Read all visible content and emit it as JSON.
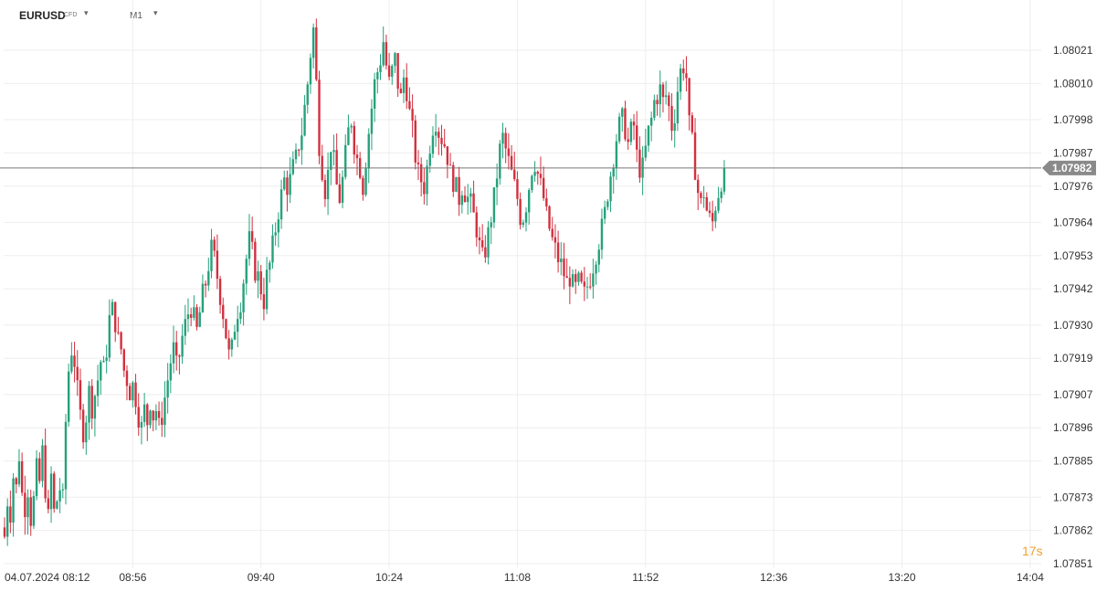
{
  "header": {
    "symbol": "EURUSD",
    "instrument_type": "CFD",
    "timeframe": "M1"
  },
  "colors": {
    "bull": "#26a17b",
    "bear": "#d2303f",
    "grid": "#eeeeee",
    "price_line": "#777777",
    "badge_bg": "#8a8a8a",
    "countdown": "#f0a030"
  },
  "chart_data": {
    "type": "candlestick",
    "symbol": "EURUSD",
    "timeframe": "M1",
    "ylim": [
      1.07846,
      1.08037
    ],
    "y_ticks": [
      "1.08021",
      "1.08010",
      "1.07998",
      "1.07987",
      "1.07976",
      "1.07964",
      "1.07953",
      "1.07942",
      "1.07930",
      "1.07919",
      "1.07907",
      "1.07896",
      "1.07885",
      "1.07873",
      "1.07862",
      "1.07851"
    ],
    "x_ticks": [
      {
        "label": "04.07.2024  08:12",
        "minute": 0
      },
      {
        "label": "08:56",
        "minute": 44
      },
      {
        "label": "09:40",
        "minute": 88
      },
      {
        "label": "10:24",
        "minute": 132
      },
      {
        "label": "11:08",
        "minute": 176
      },
      {
        "label": "11:52",
        "minute": 220
      },
      {
        "label": "12:36",
        "minute": 264
      },
      {
        "label": "13:20",
        "minute": 308
      },
      {
        "label": "14:04",
        "minute": 352
      }
    ],
    "last_price": "1.07982",
    "countdown": "17s",
    "close_path": [
      [
        0,
        1.0786
      ],
      [
        1,
        1.07872
      ],
      [
        2,
        1.07868
      ],
      [
        3,
        1.0788
      ],
      [
        4,
        1.07876
      ],
      [
        5,
        1.07887
      ],
      [
        6,
        1.07874
      ],
      [
        7,
        1.0787
      ],
      [
        8,
        1.07876
      ],
      [
        9,
        1.07866
      ],
      [
        10,
        1.07872
      ],
      [
        11,
        1.07882
      ],
      [
        12,
        1.07878
      ],
      [
        13,
        1.07888
      ],
      [
        14,
        1.07876
      ],
      [
        15,
        1.07866
      ],
      [
        16,
        1.0788
      ],
      [
        17,
        1.07868
      ],
      [
        18,
        1.07872
      ],
      [
        19,
        1.07876
      ],
      [
        20,
        1.07872
      ],
      [
        21,
        1.07898
      ],
      [
        22,
        1.07915
      ],
      [
        23,
        1.07922
      ],
      [
        24,
        1.07918
      ],
      [
        25,
        1.07908
      ],
      [
        26,
        1.079
      ],
      [
        27,
        1.07895
      ],
      [
        28,
        1.079
      ],
      [
        29,
        1.07908
      ],
      [
        30,
        1.07903
      ],
      [
        31,
        1.07907
      ],
      [
        32,
        1.07912
      ],
      [
        33,
        1.07918
      ],
      [
        34,
        1.07915
      ],
      [
        35,
        1.07922
      ],
      [
        36,
        1.07932
      ],
      [
        37,
        1.07935
      ],
      [
        38,
        1.07931
      ],
      [
        39,
        1.07925
      ],
      [
        40,
        1.07922
      ],
      [
        41,
        1.07915
      ],
      [
        42,
        1.07912
      ],
      [
        43,
        1.07908
      ],
      [
        44,
        1.0791
      ],
      [
        45,
        1.07906
      ],
      [
        46,
        1.079
      ],
      [
        47,
        1.07896
      ],
      [
        48,
        1.07902
      ],
      [
        49,
        1.07898
      ],
      [
        50,
        1.07905
      ],
      [
        51,
        1.079
      ],
      [
        52,
        1.07902
      ],
      [
        53,
        1.07896
      ],
      [
        54,
        1.079
      ],
      [
        55,
        1.07906
      ],
      [
        56,
        1.07912
      ],
      [
        57,
        1.07918
      ],
      [
        58,
        1.07922
      ],
      [
        59,
        1.07916
      ],
      [
        60,
        1.0792
      ],
      [
        61,
        1.07926
      ],
      [
        62,
        1.0793
      ],
      [
        63,
        1.07934
      ],
      [
        64,
        1.07936
      ],
      [
        65,
        1.07932
      ],
      [
        66,
        1.07928
      ],
      [
        67,
        1.07934
      ],
      [
        68,
        1.0794
      ],
      [
        69,
        1.07944
      ],
      [
        70,
        1.0795
      ],
      [
        71,
        1.07955
      ],
      [
        72,
        1.07952
      ],
      [
        73,
        1.07946
      ],
      [
        74,
        1.0794
      ],
      [
        75,
        1.07934
      ],
      [
        76,
        1.07927
      ],
      [
        77,
        1.0792
      ],
      [
        78,
        1.07922
      ],
      [
        79,
        1.0793
      ],
      [
        80,
        1.07935
      ],
      [
        81,
        1.07938
      ],
      [
        82,
        1.07945
      ],
      [
        83,
        1.07952
      ],
      [
        84,
        1.07958
      ],
      [
        85,
        1.07954
      ],
      [
        86,
        1.07948
      ],
      [
        87,
        1.07946
      ],
      [
        88,
        1.07942
      ],
      [
        89,
        1.07938
      ],
      [
        90,
        1.07946
      ],
      [
        91,
        1.0795
      ],
      [
        92,
        1.07956
      ],
      [
        93,
        1.07962
      ],
      [
        94,
        1.07968
      ],
      [
        95,
        1.07973
      ],
      [
        96,
        1.07978
      ],
      [
        97,
        1.07976
      ],
      [
        98,
        1.07978
      ],
      [
        99,
        1.07982
      ],
      [
        100,
        1.07985
      ],
      [
        101,
        1.0799
      ],
      [
        102,
        1.07994
      ],
      [
        103,
        1.08002
      ],
      [
        104,
        1.0801
      ],
      [
        105,
        1.0802
      ],
      [
        106,
        1.08028
      ],
      [
        107,
        1.0801
      ],
      [
        108,
        1.0799
      ],
      [
        109,
        1.07982
      ],
      [
        110,
        1.07975
      ],
      [
        111,
        1.0798
      ],
      [
        112,
        1.0799
      ],
      [
        113,
        1.07984
      ],
      [
        114,
        1.07976
      ],
      [
        115,
        1.07972
      ],
      [
        116,
        1.07978
      ],
      [
        117,
        1.07986
      ],
      [
        118,
        1.07994
      ],
      [
        119,
        1.07998
      ],
      [
        120,
        1.0799
      ],
      [
        121,
        1.07985
      ],
      [
        122,
        1.07982
      ],
      [
        123,
        1.07976
      ],
      [
        124,
        1.07985
      ],
      [
        125,
        1.07994
      ],
      [
        126,
        1.08002
      ],
      [
        127,
        1.0801
      ],
      [
        128,
        1.08014
      ],
      [
        129,
        1.08018
      ],
      [
        130,
        1.08024
      ],
      [
        131,
        1.08016
      ],
      [
        132,
        1.0801
      ],
      [
        133,
        1.08014
      ],
      [
        134,
        1.08018
      ],
      [
        135,
        1.0801
      ],
      [
        136,
        1.08005
      ],
      [
        137,
        1.08012
      ],
      [
        138,
        1.08008
      ],
      [
        139,
        1.08
      ],
      [
        140,
        1.07994
      ],
      [
        141,
        1.07986
      ],
      [
        142,
        1.0798
      ],
      [
        143,
        1.07978
      ],
      [
        144,
        1.07976
      ],
      [
        145,
        1.07982
      ],
      [
        146,
        1.0799
      ],
      [
        147,
        1.07996
      ],
      [
        148,
        1.07998
      ],
      [
        149,
        1.07994
      ],
      [
        150,
        1.07992
      ],
      [
        151,
        1.0799
      ],
      [
        152,
        1.07986
      ],
      [
        153,
        1.0798
      ],
      [
        154,
        1.07978
      ],
      [
        155,
        1.07975
      ],
      [
        156,
        1.07972
      ],
      [
        157,
        1.07976
      ],
      [
        158,
        1.07974
      ],
      [
        159,
        1.07972
      ],
      [
        160,
        1.0797
      ],
      [
        161,
        1.07966
      ],
      [
        162,
        1.07962
      ],
      [
        163,
        1.07956
      ],
      [
        164,
        1.07952
      ],
      [
        165,
        1.07955
      ],
      [
        166,
        1.0796
      ],
      [
        167,
        1.07966
      ],
      [
        168,
        1.07972
      ],
      [
        169,
        1.0798
      ],
      [
        170,
        1.07988
      ],
      [
        171,
        1.07992
      ],
      [
        172,
        1.07988
      ],
      [
        173,
        1.07984
      ],
      [
        174,
        1.0798
      ],
      [
        175,
        1.07976
      ],
      [
        176,
        1.07972
      ],
      [
        177,
        1.07966
      ],
      [
        178,
        1.07966
      ],
      [
        179,
        1.0797
      ],
      [
        180,
        1.07976
      ],
      [
        181,
        1.07982
      ],
      [
        182,
        1.07984
      ],
      [
        183,
        1.0798
      ],
      [
        184,
        1.07976
      ],
      [
        185,
        1.07972
      ],
      [
        186,
        1.07966
      ],
      [
        187,
        1.07962
      ],
      [
        188,
        1.07958
      ],
      [
        189,
        1.07955
      ],
      [
        190,
        1.07952
      ],
      [
        191,
        1.0795
      ],
      [
        192,
        1.07947
      ],
      [
        193,
        1.07944
      ],
      [
        194,
        1.07946
      ],
      [
        195,
        1.07943
      ],
      [
        196,
        1.07942
      ],
      [
        197,
        1.07944
      ],
      [
        198,
        1.07942
      ],
      [
        199,
        1.0794
      ],
      [
        200,
        1.07943
      ],
      [
        201,
        1.07946
      ],
      [
        202,
        1.0795
      ],
      [
        203,
        1.07954
      ],
      [
        204,
        1.07958
      ],
      [
        205,
        1.07962
      ],
      [
        206,
        1.07967
      ],
      [
        207,
        1.07974
      ],
      [
        208,
        1.0798
      ],
      [
        209,
        1.07986
      ],
      [
        210,
        1.07992
      ],
      [
        211,
        1.07996
      ],
      [
        212,
        1.07998
      ],
      [
        213,
        1.07995
      ],
      [
        214,
        1.0799
      ],
      [
        215,
        1.07994
      ],
      [
        216,
        1.07996
      ],
      [
        217,
        1.07986
      ],
      [
        218,
        1.07982
      ],
      [
        219,
        1.07982
      ],
      [
        220,
        1.07988
      ],
      [
        221,
        1.07994
      ],
      [
        222,
        1.07998
      ],
      [
        223,
        1.08004
      ],
      [
        224,
        1.08006
      ],
      [
        225,
        1.08008
      ],
      [
        226,
        1.08004
      ],
      [
        227,
        1.08006
      ],
      [
        228,
        1.08002
      ],
      [
        229,
        1.07996
      ],
      [
        230,
        1.08
      ],
      [
        231,
        1.08008
      ],
      [
        232,
        1.08014
      ],
      [
        233,
        1.08016
      ],
      [
        234,
        1.08012
      ],
      [
        235,
        1.07996
      ],
      [
        236,
        1.0799
      ],
      [
        237,
        1.07982
      ],
      [
        238,
        1.07974
      ],
      [
        239,
        1.0797
      ],
      [
        240,
        1.07974
      ],
      [
        241,
        1.07968
      ],
      [
        242,
        1.07965
      ],
      [
        243,
        1.07964
      ],
      [
        244,
        1.0797
      ],
      [
        245,
        1.07974
      ],
      [
        246,
        1.07978
      ],
      [
        247,
        1.07982
      ]
    ]
  }
}
